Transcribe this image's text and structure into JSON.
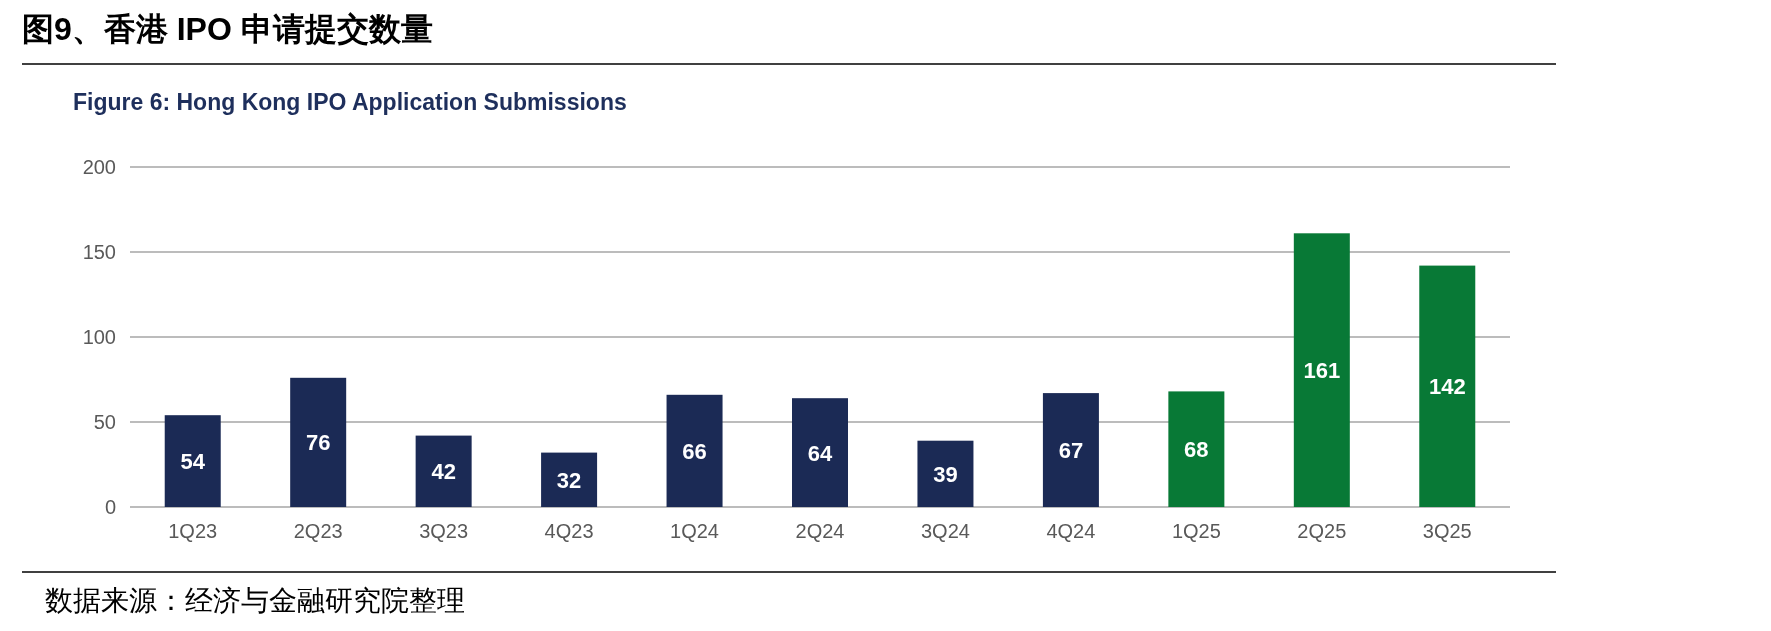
{
  "chart_data": {
    "type": "bar",
    "title": "图9、香港  IPO  申请提交数量",
    "subtitle": "Figure 6: Hong Kong IPO Application Submissions",
    "categories": [
      "1Q23",
      "2Q23",
      "3Q23",
      "4Q23",
      "1Q24",
      "2Q24",
      "3Q24",
      "4Q24",
      "1Q25",
      "2Q25",
      "3Q25"
    ],
    "values": [
      54,
      76,
      42,
      32,
      66,
      64,
      39,
      67,
      68,
      161,
      142
    ],
    "colors": [
      "#1b2a55",
      "#1b2a55",
      "#1b2a55",
      "#1b2a55",
      "#1b2a55",
      "#1b2a55",
      "#1b2a55",
      "#1b2a55",
      "#087936",
      "#087936",
      "#087936"
    ],
    "ylim": [
      0,
      200
    ],
    "yticks": [
      0,
      50,
      100,
      150,
      200
    ],
    "grid": "y",
    "data_labels": true,
    "annotations": [
      "数据来源：经济与金融研究院整理"
    ]
  }
}
